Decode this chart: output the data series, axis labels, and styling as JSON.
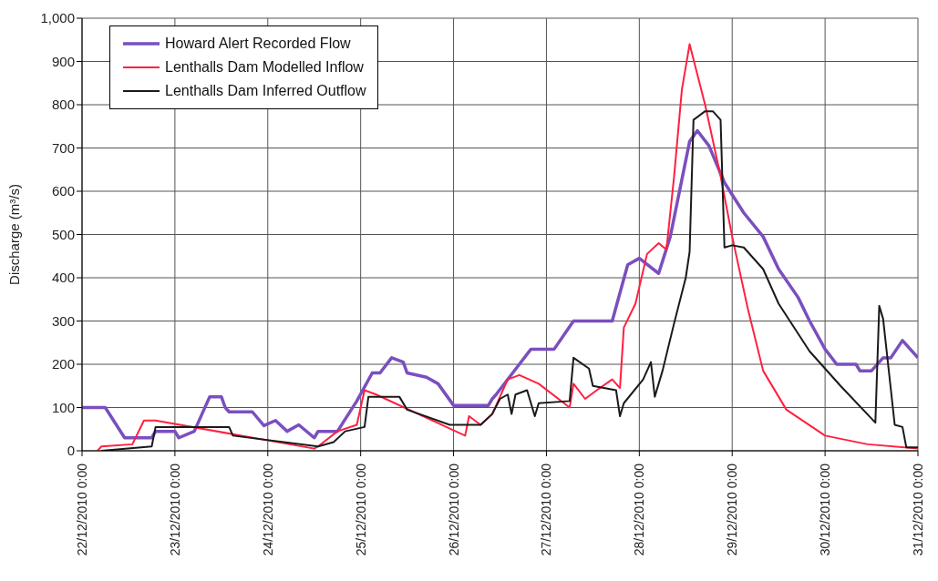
{
  "chart_data": {
    "type": "line",
    "ylabel": "Discharge (m³/s)",
    "legend": "top left",
    "grid": true,
    "marker": "none",
    "line_style": "solid",
    "xlim": [
      "2010-12-22T00:00",
      "2010-12-31T00:00"
    ],
    "xticks": [
      {
        "value": "2010-12-22T00:00",
        "label": "22/12/2010 0:00"
      },
      {
        "value": "2010-12-23T00:00",
        "label": "23/12/2010 0:00"
      },
      {
        "value": "2010-12-24T00:00",
        "label": "24/12/2010 0:00"
      },
      {
        "value": "2010-12-25T00:00",
        "label": "25/12/2010 0:00"
      },
      {
        "value": "2010-12-26T00:00",
        "label": "26/12/2010 0:00"
      },
      {
        "value": "2010-12-27T00:00",
        "label": "27/12/2010 0:00"
      },
      {
        "value": "2010-12-28T00:00",
        "label": "28/12/2010 0:00"
      },
      {
        "value": "2010-12-29T00:00",
        "label": "29/12/2010 0:00"
      },
      {
        "value": "2010-12-30T00:00",
        "label": "30/12/2010 0:00"
      },
      {
        "value": "2010-12-31T00:00",
        "label": "31/12/2010 0:00"
      }
    ],
    "ylim": [
      0,
      1000
    ],
    "yticks": [
      0,
      100,
      200,
      300,
      400,
      500,
      600,
      700,
      800,
      900,
      {
        "value": 1000,
        "label": "1,000"
      }
    ],
    "series": [
      {
        "name": "Howard Alert Recorded Flow",
        "color": "#7a4fbf",
        "x": [
          "2010-12-22T00:00",
          "2010-12-22T06:00",
          "2010-12-22T11:00",
          "2010-12-22T18:00",
          "2010-12-22T19:00",
          "2010-12-23T00:00",
          "2010-12-23T01:00",
          "2010-12-23T05:00",
          "2010-12-23T09:00",
          "2010-12-23T12:00",
          "2010-12-23T13:00",
          "2010-12-23T14:00",
          "2010-12-23T20:00",
          "2010-12-23T23:00",
          "2010-12-24T02:00",
          "2010-12-24T05:00",
          "2010-12-24T08:00",
          "2010-12-24T12:00",
          "2010-12-24T13:00",
          "2010-12-24T18:00",
          "2010-12-24T23:00",
          "2010-12-25T03:00",
          "2010-12-25T05:00",
          "2010-12-25T08:00",
          "2010-12-25T11:00",
          "2010-12-25T12:00",
          "2010-12-25T17:00",
          "2010-12-25T20:00",
          "2010-12-26T00:00",
          "2010-12-26T09:00",
          "2010-12-26T10:00",
          "2010-12-26T11:00",
          "2010-12-26T17:00",
          "2010-12-26T20:00",
          "2010-12-27T02:00",
          "2010-12-27T07:00",
          "2010-12-27T17:00",
          "2010-12-27T21:00",
          "2010-12-28T00:00",
          "2010-12-28T05:00",
          "2010-12-28T08:00",
          "2010-12-28T13:00",
          "2010-12-28T15:00",
          "2010-12-28T18:00",
          "2010-12-28T22:00",
          "2010-12-29T03:00",
          "2010-12-29T08:00",
          "2010-12-29T12:00",
          "2010-12-29T17:00",
          "2010-12-29T20:00",
          "2010-12-30T00:00",
          "2010-12-30T03:00",
          "2010-12-30T08:00",
          "2010-12-30T09:00",
          "2010-12-30T12:00",
          "2010-12-30T15:00",
          "2010-12-30T17:00",
          "2010-12-30T20:00",
          "2010-12-30T22:00",
          "2010-12-31T00:00"
        ],
        "values": [
          100,
          100,
          30,
          30,
          45,
          45,
          30,
          45,
          125,
          125,
          100,
          90,
          90,
          58,
          70,
          45,
          60,
          30,
          45,
          45,
          115,
          180,
          180,
          215,
          205,
          180,
          170,
          155,
          105,
          105,
          120,
          130,
          200,
          235,
          235,
          300,
          300,
          430,
          445,
          410,
          495,
          715,
          740,
          705,
          620,
          550,
          495,
          420,
          355,
          300,
          235,
          200,
          200,
          185,
          185,
          215,
          215,
          255,
          235,
          215
        ]
      },
      {
        "name": "Lenthalls Dam Modelled Inflow",
        "color": "#ff2040",
        "x": [
          "2010-12-22T04:00",
          "2010-12-22T05:00",
          "2010-12-22T13:00",
          "2010-12-22T16:00",
          "2010-12-22T19:00",
          "2010-12-24T12:00",
          "2010-12-24T13:00",
          "2010-12-24T18:00",
          "2010-12-24T23:00",
          "2010-12-25T01:00",
          "2010-12-25T04:00",
          "2010-12-26T03:00",
          "2010-12-26T04:00",
          "2010-12-26T07:00",
          "2010-12-26T10:00",
          "2010-12-26T14:00",
          "2010-12-26T17:00",
          "2010-12-26T22:00",
          "2010-12-27T06:00",
          "2010-12-27T07:00",
          "2010-12-27T10:00",
          "2010-12-27T13:00",
          "2010-12-27T17:00",
          "2010-12-27T19:00",
          "2010-12-27T20:00",
          "2010-12-27T23:00",
          "2010-12-28T02:00",
          "2010-12-28T05:00",
          "2010-12-28T07:00",
          "2010-12-28T09:00",
          "2010-12-28T11:00",
          "2010-12-28T13:00",
          "2010-12-28T17:00",
          "2010-12-28T21:00",
          "2010-12-29T00:00",
          "2010-12-29T04:00",
          "2010-12-29T08:00",
          "2010-12-29T14:00",
          "2010-12-30T00:00",
          "2010-12-30T11:00",
          "2010-12-31T00:00"
        ],
        "values": [
          0,
          10,
          15,
          70,
          70,
          5,
          10,
          45,
          60,
          140,
          130,
          35,
          80,
          60,
          85,
          165,
          175,
          155,
          100,
          155,
          120,
          140,
          165,
          145,
          285,
          340,
          455,
          480,
          465,
          635,
          835,
          940,
          800,
          635,
          495,
          330,
          185,
          95,
          35,
          15,
          5
        ]
      },
      {
        "name": "Lenthalls Dam Inferred Outflow",
        "color": "#1a1a1a",
        "x": [
          "2010-12-22T05:00",
          "2010-12-22T18:00",
          "2010-12-22T19:00",
          "2010-12-23T14:00",
          "2010-12-23T15:00",
          "2010-12-24T13:00",
          "2010-12-24T17:00",
          "2010-12-24T20:00",
          "2010-12-25T01:00",
          "2010-12-25T02:00",
          "2010-12-25T10:00",
          "2010-12-25T12:00",
          "2010-12-25T23:00",
          "2010-12-26T07:00",
          "2010-12-26T10:00",
          "2010-12-26T12:00",
          "2010-12-26T14:00",
          "2010-12-26T15:00",
          "2010-12-26T16:00",
          "2010-12-26T19:00",
          "2010-12-26T21:00",
          "2010-12-26T22:00",
          "2010-12-27T06:00",
          "2010-12-27T07:00",
          "2010-12-27T11:00",
          "2010-12-27T12:00",
          "2010-12-27T18:00",
          "2010-12-27T19:00",
          "2010-12-27T20:00",
          "2010-12-28T01:00",
          "2010-12-28T03:00",
          "2010-12-28T04:00",
          "2010-12-28T06:00",
          "2010-12-28T09:00",
          "2010-12-28T12:00",
          "2010-12-28T13:00",
          "2010-12-28T14:00",
          "2010-12-28T17:00",
          "2010-12-28T19:00",
          "2010-12-28T21:00",
          "2010-12-28T22:00",
          "2010-12-29T00:00",
          "2010-12-29T03:00",
          "2010-12-29T08:00",
          "2010-12-29T12:00",
          "2010-12-29T20:00",
          "2010-12-30T04:00",
          "2010-12-30T13:00",
          "2010-12-30T14:00",
          "2010-12-30T15:00",
          "2010-12-30T18:00",
          "2010-12-30T20:00",
          "2010-12-30T21:00",
          "2010-12-31T00:00"
        ],
        "values": [
          0,
          10,
          55,
          55,
          35,
          10,
          20,
          45,
          55,
          125,
          125,
          95,
          60,
          60,
          85,
          120,
          130,
          85,
          130,
          140,
          80,
          110,
          115,
          215,
          190,
          150,
          140,
          80,
          110,
          165,
          205,
          125,
          185,
          295,
          400,
          460,
          765,
          785,
          785,
          765,
          470,
          475,
          470,
          420,
          340,
          230,
          150,
          65,
          335,
          305,
          60,
          55,
          8,
          8
        ]
      }
    ]
  }
}
